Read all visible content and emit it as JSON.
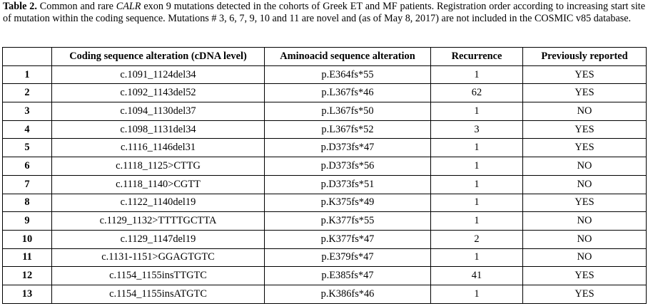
{
  "caption": {
    "label": "Table 2.",
    "text_before_gene": " Common and rare ",
    "gene": "CALR",
    "text_after_gene": " exon 9 mutations detected in the cohorts of Greek ET and MF patients. Registration order according to increasing start site of mutation within the coding sequence. Mutations # 3, 6, 7, 9, 10 and 11 are novel and (as of May 8, 2017) are not included in the COSMIC v85 database."
  },
  "table": {
    "headers": [
      "",
      "Coding sequence alteration (cDNA level)",
      "Aminoacid sequence alteration",
      "Recurrence",
      "Previously reported"
    ],
    "rows": [
      [
        "1",
        "c.1091_1124del34",
        "p.E364fs*55",
        "1",
        "YES"
      ],
      [
        "2",
        "c.1092_1143del52",
        "p.L367fs*46",
        "62",
        "YES"
      ],
      [
        "3",
        "c.1094_1130del37",
        "p.L367fs*50",
        "1",
        "NO"
      ],
      [
        "4",
        "c.1098_1131del34",
        "p.L367fs*52",
        "3",
        "YES"
      ],
      [
        "5",
        "c.1116_1146del31",
        "p.D373fs*47",
        "1",
        "YES"
      ],
      [
        "6",
        "c.1118_1125>CTTG",
        "p.D373fs*56",
        "1",
        "NO"
      ],
      [
        "7",
        "c.1118_1140>CGTT",
        "p.D373fs*51",
        "1",
        "NO"
      ],
      [
        "8",
        "c.1122_1140del19",
        "p.K375fs*49",
        "1",
        "YES"
      ],
      [
        "9",
        "c.1129_1132>TTTTGCTTA",
        "p.K377fs*55",
        "1",
        "NO"
      ],
      [
        "10",
        "c.1129_1147del19",
        "p.K377fs*47",
        "2",
        "NO"
      ],
      [
        "11",
        "c.1131-1151>GGAGTGTC",
        "p.E379fs*47",
        "1",
        "NO"
      ],
      [
        "12",
        "c.1154_1155insTTGTC",
        "p.E385fs*47",
        "41",
        "YES"
      ],
      [
        "13",
        "c.1154_1155insATGTC",
        "p.K386fs*46",
        "1",
        "YES"
      ]
    ]
  }
}
